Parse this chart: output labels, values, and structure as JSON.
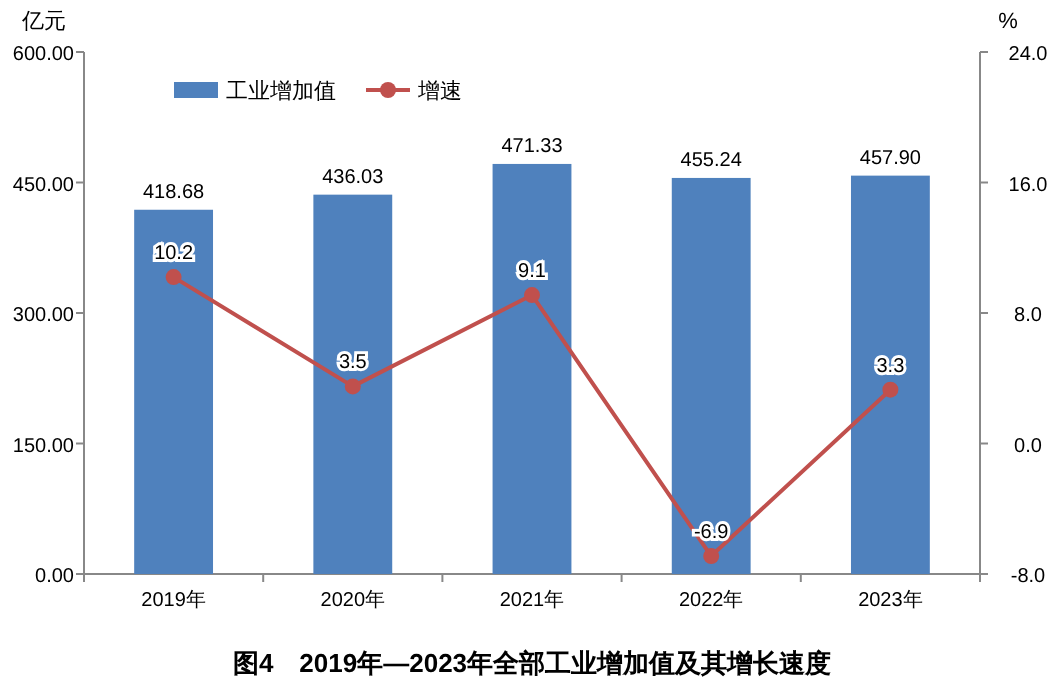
{
  "chart_data": {
    "type": "bar",
    "title": "图4　2019年—2023年全部工业增加值及其增长速度",
    "ylabel": "亿元",
    "y2label": "%",
    "categories": [
      "2019年",
      "2020年",
      "2021年",
      "2022年",
      "2023年"
    ],
    "series": [
      {
        "name": "工业增加值",
        "color": "#4f81bd",
        "values": [
          418.68,
          436.03,
          471.33,
          455.24,
          457.9
        ],
        "value_labels": [
          "418.68",
          "436.03",
          "471.33",
          "455.24",
          "457.90"
        ]
      },
      {
        "name": "增速",
        "type": "line",
        "axis": "y2",
        "color": "#c0504d",
        "values": [
          10.2,
          3.5,
          9.1,
          -6.9,
          3.3
        ],
        "value_labels": [
          "10.2",
          "3.5",
          "9.1",
          "-6.9",
          "3.3"
        ]
      }
    ],
    "ylim": [
      0,
      600
    ],
    "yticks": [
      {
        "value": 0,
        "label": "0.00"
      },
      {
        "value": 150,
        "label": "150.00"
      },
      {
        "value": 300,
        "label": "300.00"
      },
      {
        "value": 450,
        "label": "450.00"
      },
      {
        "value": 600,
        "label": "600.00"
      }
    ],
    "y2lim": [
      -8,
      24
    ],
    "y2ticks": [
      {
        "value": -8,
        "label": "-8.0"
      },
      {
        "value": 0,
        "label": "0.0"
      },
      {
        "value": 8,
        "label": "8.0"
      },
      {
        "value": 16,
        "label": "16.0"
      },
      {
        "value": 24,
        "label": "24.0"
      }
    ],
    "grid": false,
    "legend": "top left",
    "marker": "circle",
    "line_style": "solid"
  }
}
